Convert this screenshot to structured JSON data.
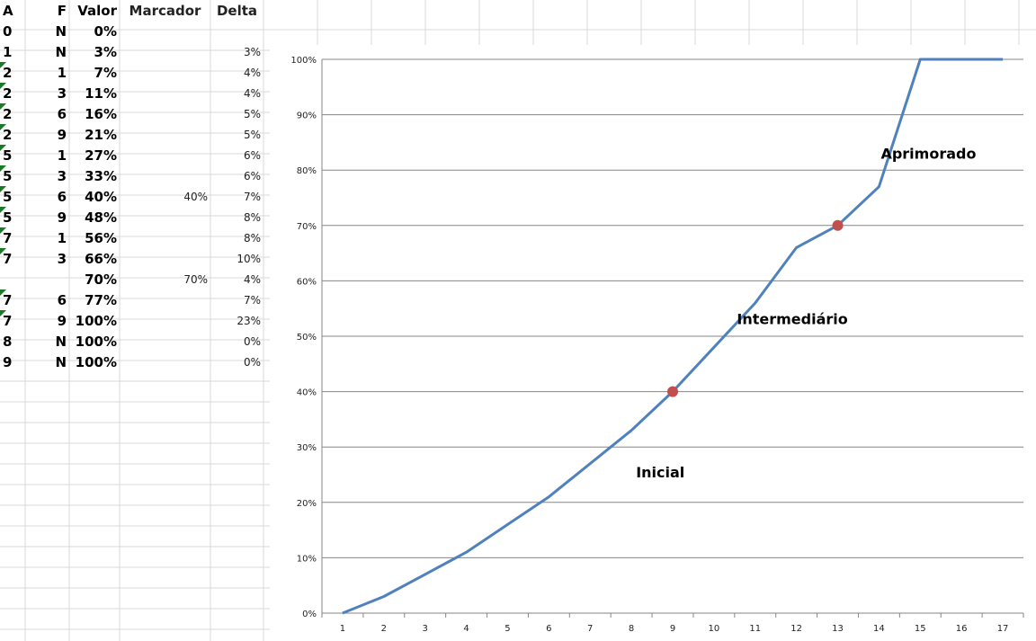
{
  "sheet": {
    "headers": {
      "a": "A",
      "f": "F",
      "valor": "Valor",
      "marcador": "Marcador",
      "delta": "Delta"
    },
    "rows": [
      {
        "a": "0",
        "f": "N",
        "valor": "0%",
        "marcador": "",
        "delta": "",
        "flag": false
      },
      {
        "a": "1",
        "f": "N",
        "valor": "3%",
        "marcador": "",
        "delta": "3%",
        "flag": false
      },
      {
        "a": "2",
        "f": "1",
        "valor": "7%",
        "marcador": "",
        "delta": "4%",
        "flag": true
      },
      {
        "a": "2",
        "f": "3",
        "valor": "11%",
        "marcador": "",
        "delta": "4%",
        "flag": true
      },
      {
        "a": "2",
        "f": "6",
        "valor": "16%",
        "marcador": "",
        "delta": "5%",
        "flag": true
      },
      {
        "a": "2",
        "f": "9",
        "valor": "21%",
        "marcador": "",
        "delta": "5%",
        "flag": true
      },
      {
        "a": "5",
        "f": "1",
        "valor": "27%",
        "marcador": "",
        "delta": "6%",
        "flag": true
      },
      {
        "a": "5",
        "f": "3",
        "valor": "33%",
        "marcador": "",
        "delta": "6%",
        "flag": true
      },
      {
        "a": "5",
        "f": "6",
        "valor": "40%",
        "marcador": "40%",
        "delta": "7%",
        "flag": true
      },
      {
        "a": "5",
        "f": "9",
        "valor": "48%",
        "marcador": "",
        "delta": "8%",
        "flag": true
      },
      {
        "a": "7",
        "f": "1",
        "valor": "56%",
        "marcador": "",
        "delta": "8%",
        "flag": true
      },
      {
        "a": "7",
        "f": "3",
        "valor": "66%",
        "marcador": "",
        "delta": "10%",
        "flag": true
      },
      {
        "a": "",
        "f": "",
        "valor": "70%",
        "marcador": "70%",
        "delta": "4%",
        "flag": false
      },
      {
        "a": "7",
        "f": "6",
        "valor": "77%",
        "marcador": "",
        "delta": "7%",
        "flag": true
      },
      {
        "a": "7",
        "f": "9",
        "valor": "100%",
        "marcador": "",
        "delta": "23%",
        "flag": true
      },
      {
        "a": "8",
        "f": "N",
        "valor": "100%",
        "marcador": "",
        "delta": "0%",
        "flag": false
      },
      {
        "a": "9",
        "f": "N",
        "valor": "100%",
        "marcador": "",
        "delta": "0%",
        "flag": false
      }
    ]
  },
  "colors": {
    "line": "#4f81bd",
    "marker": "#c0504d",
    "grid": "#868686",
    "cellBorder": "#d9d9d9",
    "flag": "#1a7a2a"
  },
  "chart_data": {
    "type": "line",
    "categories": [
      "1",
      "2",
      "3",
      "4",
      "5",
      "6",
      "7",
      "8",
      "9",
      "10",
      "11",
      "12",
      "13",
      "14",
      "15",
      "16",
      "17"
    ],
    "series": [
      {
        "values": [
          0,
          3,
          7,
          11,
          16,
          21,
          27,
          33,
          40,
          48,
          56,
          66,
          70,
          77,
          100,
          100,
          100
        ]
      }
    ],
    "markers": [
      {
        "x": "9",
        "y": 40
      },
      {
        "x": "13",
        "y": 70
      }
    ],
    "annotations": [
      {
        "text": "Inicial",
        "x": 8.7,
        "y": 25.5
      },
      {
        "text": "Intermediário",
        "x": 11.9,
        "y": 53.2
      },
      {
        "text": "Aprimorado",
        "x": 15.2,
        "y": 83.0
      }
    ],
    "yticks": [
      "0%",
      "10%",
      "20%",
      "30%",
      "40%",
      "50%",
      "60%",
      "70%",
      "80%",
      "90%",
      "100%"
    ],
    "ylim": [
      0,
      100
    ],
    "grid": true,
    "legend": "none",
    "title": "",
    "xlabel": "",
    "ylabel": ""
  }
}
